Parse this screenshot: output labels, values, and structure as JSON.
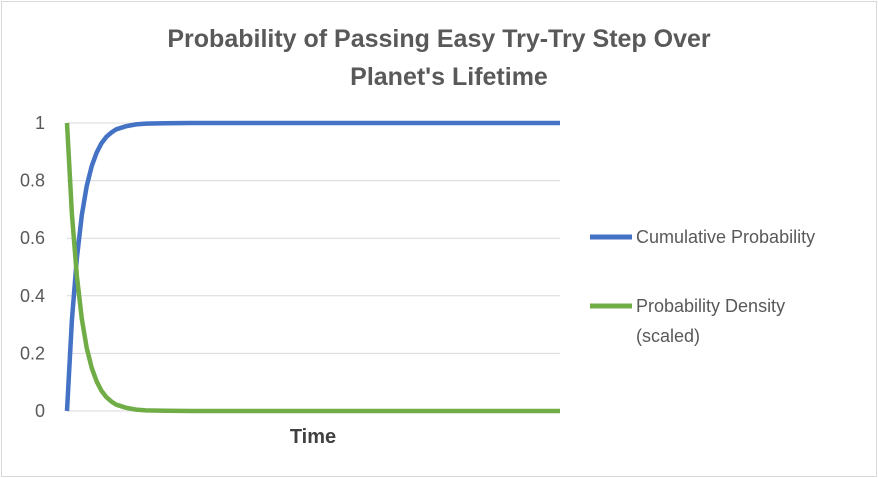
{
  "chart_data": {
    "type": "line",
    "title_lines": [
      "Probability of Passing Easy Try-Try Step Over",
      "Planet's Lifetime"
    ],
    "xlabel": "Time",
    "ylabel": "",
    "ylim": [
      0,
      1
    ],
    "yticks": [
      "0",
      "0.2",
      "0.4",
      "0.6",
      "0.8",
      "1"
    ],
    "grid": true,
    "legend_position": "right",
    "series": [
      {
        "name": "Cumulative Probability",
        "color": "#4472C4",
        "x": [
          0,
          0.01,
          0.02,
          0.03,
          0.04,
          0.05,
          0.06,
          0.07,
          0.08,
          0.09,
          0.1,
          0.12,
          0.14,
          0.16,
          0.2,
          0.25,
          0.3,
          0.4,
          0.5,
          0.6,
          0.7,
          0.8,
          0.9,
          1.0
        ],
        "values": [
          0,
          0.316,
          0.532,
          0.68,
          0.781,
          0.85,
          0.897,
          0.93,
          0.952,
          0.967,
          0.978,
          0.989,
          0.995,
          0.998,
          0.999,
          1,
          1,
          1,
          1,
          1,
          1,
          1,
          1,
          1
        ]
      },
      {
        "name": "Probability Density (scaled)",
        "color": "#70AD47",
        "x": [
          0,
          0.01,
          0.02,
          0.03,
          0.04,
          0.05,
          0.06,
          0.07,
          0.08,
          0.09,
          0.1,
          0.12,
          0.14,
          0.16,
          0.2,
          0.25,
          0.3,
          0.4,
          0.5,
          0.6,
          0.7,
          0.8,
          0.9,
          1.0
        ],
        "values": [
          1,
          0.684,
          0.468,
          0.32,
          0.219,
          0.15,
          0.103,
          0.07,
          0.048,
          0.033,
          0.022,
          0.011,
          0.005,
          0.002,
          0.001,
          0,
          0,
          0,
          0,
          0,
          0,
          0,
          0,
          0
        ]
      }
    ]
  }
}
